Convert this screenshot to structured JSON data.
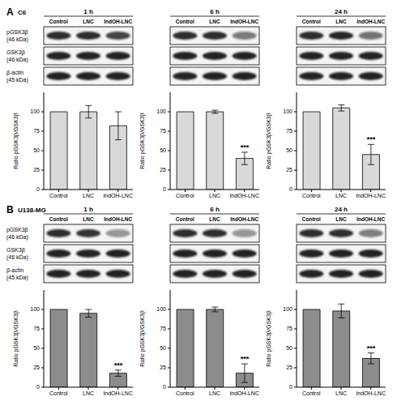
{
  "panels": [
    {
      "label": "A",
      "cell_line": "C6",
      "lanes": [
        "Control",
        "LNC",
        "IndOH-LNC"
      ],
      "blot_rows": [
        {
          "protein": "pGSK3β",
          "size": "(46 kDa)"
        },
        {
          "protein": "GSK3β",
          "size": "(46 kDa)"
        },
        {
          "protein": "β-actin",
          "size": "(45 kDa)"
        }
      ]
    },
    {
      "label": "B",
      "cell_line": "U138-MG",
      "lanes": [
        "Control",
        "LNC",
        "IndOH-LNC"
      ],
      "blot_rows": [
        {
          "protein": "pGSK3β",
          "size": "(46 kDa)"
        },
        {
          "protein": "GSK3β",
          "size": "(46 kDa)"
        },
        {
          "protein": "β-actin",
          "size": "(45 kDa)"
        }
      ]
    }
  ],
  "chart_data": [
    {
      "type": "bar",
      "title": "1 h",
      "categories": [
        "Control",
        "LNC",
        "IndOH-LNC"
      ],
      "values": [
        100,
        100,
        82
      ],
      "error": [
        0,
        8,
        18
      ],
      "color": "#d9d9d9",
      "ylim": [
        0,
        125
      ],
      "yticks": [
        0,
        25,
        50,
        75,
        100
      ],
      "y_label": "Ratio pGSK3β/GSK3β",
      "grid": false,
      "annotations": []
    },
    {
      "type": "bar",
      "title": "6 h",
      "categories": [
        "Control",
        "LNC",
        "IndOH-LNC"
      ],
      "values": [
        100,
        100,
        40
      ],
      "error": [
        0,
        2,
        8
      ],
      "color": "#d9d9d9",
      "ylim": [
        0,
        125
      ],
      "yticks": [
        0,
        25,
        50,
        75,
        100
      ],
      "y_label": "Ratio pGSK3β/GSK3β",
      "grid": false,
      "annotations": [
        {
          "category": "IndOH-LNC",
          "text": "***"
        }
      ]
    },
    {
      "type": "bar",
      "title": "24 h",
      "categories": [
        "Control",
        "LNC",
        "IndOH-LNC"
      ],
      "values": [
        100,
        105,
        45
      ],
      "error": [
        0,
        4,
        13
      ],
      "color": "#d9d9d9",
      "ylim": [
        0,
        125
      ],
      "yticks": [
        0,
        25,
        50,
        75,
        100
      ],
      "y_label": "Ratio pGSK3β/GSK3β",
      "grid": false,
      "annotations": [
        {
          "category": "IndOH-LNC",
          "text": "***"
        }
      ]
    },
    {
      "type": "bar",
      "title": "1 h",
      "categories": [
        "Control",
        "LNC",
        "IndOH-LNC"
      ],
      "values": [
        100,
        95,
        18
      ],
      "error": [
        0,
        5,
        4
      ],
      "color": "#8c8c8c",
      "ylim": [
        0,
        125
      ],
      "yticks": [
        0,
        25,
        50,
        75,
        100
      ],
      "y_label": "Ratio pGSK3β/GSK3β",
      "grid": false,
      "annotations": [
        {
          "category": "IndOH-LNC",
          "text": "***"
        }
      ]
    },
    {
      "type": "bar",
      "title": "6 h",
      "categories": [
        "Control",
        "LNC",
        "IndOH-LNC"
      ],
      "values": [
        100,
        100,
        18
      ],
      "error": [
        0,
        3,
        12
      ],
      "color": "#8c8c8c",
      "ylim": [
        0,
        125
      ],
      "yticks": [
        0,
        25,
        50,
        75,
        100
      ],
      "y_label": "Ratio pGSK3β/GSK3β",
      "grid": false,
      "annotations": [
        {
          "category": "IndOH-LNC",
          "text": "***"
        }
      ]
    },
    {
      "type": "bar",
      "title": "24 h",
      "categories": [
        "Control",
        "LNC",
        "IndOH-LNC"
      ],
      "values": [
        100,
        98,
        37
      ],
      "error": [
        0,
        9,
        7
      ],
      "color": "#8c8c8c",
      "ylim": [
        0,
        125
      ],
      "yticks": [
        0,
        25,
        50,
        75,
        100
      ],
      "y_label": "Ratio pGSK3β/GSK3β",
      "grid": false,
      "annotations": [
        {
          "category": "IndOH-LNC",
          "text": "***"
        }
      ]
    }
  ]
}
